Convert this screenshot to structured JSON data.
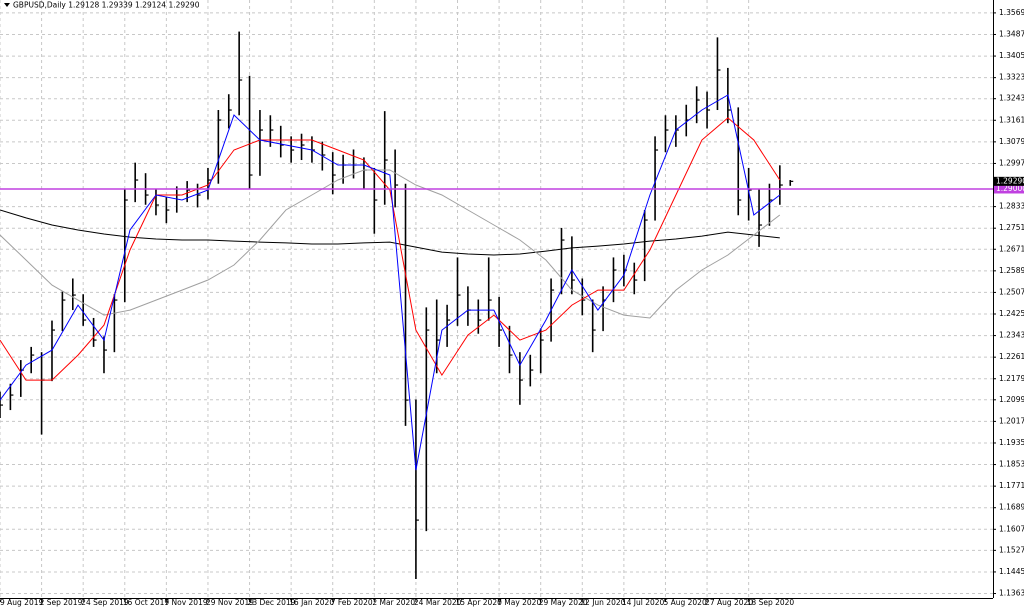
{
  "chart_data": {
    "type": "ohlc",
    "title": "GBPUSD,Daily  1.29128 1.29339 1.29124 1.29290",
    "color": "#000000",
    "grid": true,
    "x": [
      0,
      4,
      8,
      12,
      16,
      20,
      24,
      28,
      32,
      36,
      40,
      44,
      48,
      52,
      56,
      60,
      64,
      68,
      72,
      76,
      80,
      84,
      88,
      92,
      96,
      100,
      104,
      108,
      112,
      116,
      120,
      124,
      128,
      132,
      136,
      140,
      144,
      148,
      152,
      156,
      160,
      164,
      168,
      172,
      176,
      180,
      184,
      188,
      192,
      196,
      200,
      204,
      208,
      212,
      216,
      220,
      224,
      228,
      232,
      236,
      240,
      244,
      248,
      252,
      256,
      260,
      264,
      268,
      272,
      276,
      280,
      284,
      288,
      292,
      296,
      300,
      304
    ],
    "high": [
      1.213,
      1.216,
      1.225,
      1.23,
      1.228,
      1.24,
      1.251,
      1.256,
      1.25,
      1.241,
      1.234,
      1.25,
      1.29,
      1.3,
      1.296,
      1.29,
      1.287,
      1.291,
      1.293,
      1.292,
      1.298,
      1.32,
      1.326,
      1.3498,
      1.333,
      1.32,
      1.318,
      1.314,
      1.31,
      1.311,
      1.31,
      1.308,
      1.304,
      1.303,
      1.305,
      1.302,
      1.298,
      1.3196,
      1.305,
      1.292,
      1.21,
      1.245,
      1.248,
      1.246,
      1.264,
      1.253,
      1.248,
      1.264,
      1.249,
      1.238,
      1.228,
      1.227,
      1.237,
      1.256,
      1.2752,
      1.272,
      1.256,
      1.248,
      1.253,
      1.264,
      1.265,
      1.262,
      1.282,
      1.31,
      1.318,
      1.318,
      1.322,
      1.329,
      1.327,
      1.3476,
      1.336,
      1.321,
      1.298,
      1.29,
      1.292,
      1.299,
      1.2934
    ],
    "low": [
      1.203,
      1.206,
      1.211,
      1.22,
      1.1967,
      1.217,
      1.236,
      1.244,
      1.238,
      1.23,
      1.22,
      1.228,
      1.247,
      1.285,
      1.284,
      1.28,
      1.277,
      1.281,
      1.285,
      1.283,
      1.286,
      1.292,
      1.313,
      1.318,
      1.29,
      1.295,
      1.306,
      1.302,
      1.3,
      1.301,
      1.3,
      1.297,
      1.288,
      1.292,
      1.294,
      1.29,
      1.273,
      1.284,
      1.283,
      1.2,
      1.1418,
      1.16,
      1.22,
      1.23,
      1.238,
      1.238,
      1.235,
      1.24,
      1.23,
      1.22,
      1.208,
      1.215,
      1.22,
      1.232,
      1.25,
      1.25,
      1.242,
      1.228,
      1.236,
      1.247,
      1.253,
      1.25,
      1.255,
      1.278,
      1.304,
      1.306,
      1.31,
      1.315,
      1.313,
      1.32,
      1.315,
      1.28,
      1.278,
      1.268,
      1.276,
      1.284,
      1.2912
    ],
    "close": [
      1.2079,
      1.2117,
      1.2212,
      1.2269,
      1.2174,
      1.2364,
      1.2478,
      1.2497,
      1.2402,
      1.2326,
      1.2288,
      1.2478,
      1.2858,
      1.2934,
      1.2877,
      1.2839,
      1.282,
      1.2877,
      1.2896,
      1.2877,
      1.2934,
      1.3162,
      1.32,
      1.3314,
      1.2953,
      1.3124,
      1.3124,
      1.3067,
      1.3048,
      1.3067,
      1.3048,
      1.3029,
      1.2953,
      1.2991,
      1.2991,
      1.2972,
      1.2858,
      1.301,
      1.2915,
      1.2098,
      1.1642,
      1.2364,
      1.2326,
      1.2402,
      1.2497,
      1.244,
      1.2402,
      1.2478,
      1.2364,
      1.2269,
      1.2174,
      1.2212,
      1.2326,
      1.2516,
      1.2706,
      1.2554,
      1.2478,
      1.2364,
      1.2478,
      1.2592,
      1.2592,
      1.2554,
      1.2782,
      1.3048,
      1.3124,
      1.3124,
      1.3162,
      1.3238,
      1.32,
      1.3352,
      1.32,
      1.2858,
      1.2896,
      1.2763,
      1.2858,
      1.2915,
      1.2929
    ],
    "overlays": [
      {
        "color": "#000000",
        "x": [
          0,
          10,
          20,
          30,
          40,
          50,
          60,
          70,
          80,
          90,
          100,
          110,
          120,
          130,
          140,
          150,
          160,
          170,
          180,
          190,
          200,
          210,
          220,
          230,
          240,
          250,
          260,
          270,
          280,
          290,
          300
        ],
        "values": [
          1.282,
          1.279,
          1.2763,
          1.2744,
          1.2729,
          1.2717,
          1.271,
          1.2706,
          1.2706,
          1.2702,
          1.2698,
          1.2695,
          1.2691,
          1.2691,
          1.2695,
          1.2698,
          1.2679,
          1.266,
          1.2653,
          1.2649,
          1.2653,
          1.2664,
          1.2676,
          1.2683,
          1.2691,
          1.2702,
          1.271,
          1.2721,
          1.2736,
          1.2725,
          1.2714
        ]
      },
      {
        "color": "#a0a0a0",
        "x": [
          0,
          10,
          20,
          30,
          40,
          50,
          60,
          70,
          80,
          90,
          100,
          110,
          120,
          130,
          140,
          150,
          160,
          170,
          180,
          190,
          200,
          210,
          220,
          230,
          240,
          250,
          260,
          270,
          280,
          290,
          300
        ],
        "values": [
          1.2725,
          1.263,
          1.2535,
          1.2478,
          1.2421,
          1.244,
          1.2478,
          1.2516,
          1.2554,
          1.2611,
          1.2706,
          1.282,
          1.2877,
          1.2934,
          1.2972,
          1.2972,
          1.2915,
          1.2877,
          1.282,
          1.2763,
          1.2706,
          1.263,
          1.2516,
          1.2459,
          1.2421,
          1.241,
          1.2516,
          1.2592,
          1.2649,
          1.2725,
          1.2801
        ]
      },
      {
        "color": "#ff0000",
        "x": [
          0,
          10,
          20,
          30,
          40,
          50,
          60,
          70,
          80,
          90,
          100,
          110,
          120,
          130,
          140,
          150,
          160,
          170,
          180,
          190,
          200,
          210,
          220,
          230,
          240,
          250,
          260,
          270,
          280,
          290,
          300
        ],
        "values": [
          1.2326,
          1.2174,
          1.2174,
          1.2269,
          1.2383,
          1.2668,
          1.2877,
          1.2877,
          1.2915,
          1.3048,
          1.3086,
          1.3086,
          1.3086,
          1.3048,
          1.301,
          1.2896,
          1.2364,
          1.2193,
          1.2345,
          1.2421,
          1.2326,
          1.2364,
          1.2459,
          1.2516,
          1.2516,
          1.2668,
          1.2877,
          1.3086,
          1.317,
          1.3086,
          1.2934
        ]
      },
      {
        "color": "#0000ff",
        "x": [
          0,
          10,
          20,
          30,
          40,
          50,
          60,
          70,
          80,
          90,
          100,
          110,
          120,
          130,
          140,
          150,
          160,
          170,
          180,
          190,
          200,
          210,
          220,
          230,
          240,
          250,
          260,
          270,
          280,
          290,
          300
        ],
        "values": [
          1.2098,
          1.2231,
          1.2288,
          1.2459,
          1.2326,
          1.2744,
          1.2877,
          1.2858,
          1.2896,
          1.3181,
          1.3086,
          1.3067,
          1.3048,
          1.2991,
          1.2991,
          1.2953,
          1.1832,
          1.2364,
          1.244,
          1.244,
          1.2231,
          1.2402,
          1.2592,
          1.244,
          1.2573,
          1.2877,
          1.3124,
          1.32,
          1.3257,
          1.2801,
          1.2877
        ]
      }
    ],
    "hlines": [
      {
        "value": 1.29,
        "label": "1.29000",
        "color": "#c040e0"
      }
    ],
    "price_label": {
      "value": 1.2929,
      "label": "1.29290"
    },
    "xlim": [
      0,
      382
    ],
    "ylim": [
      1.1346,
      1.3618
    ],
    "xticks": [
      {
        "value": 0,
        "label": "9 Aug 2019"
      },
      {
        "value": 16,
        "label": "2 Sep 2019"
      },
      {
        "value": 32,
        "label": "24 Sep 2019"
      },
      {
        "value": 48,
        "label": "16 Oct 2019"
      },
      {
        "value": 64,
        "label": "7 Nov 2019"
      },
      {
        "value": 80,
        "label": "29 Nov 2019"
      },
      {
        "value": 96,
        "label": "23 Dec 2019"
      },
      {
        "value": 112,
        "label": "16 Jan 2020"
      },
      {
        "value": 128,
        "label": "7 Feb 2020"
      },
      {
        "value": 144,
        "label": "2 Mar 2020"
      },
      {
        "value": 160,
        "label": "24 Mar 2020"
      },
      {
        "value": 176,
        "label": "15 Apr 2020"
      },
      {
        "value": 192,
        "label": "7 May 2020"
      },
      {
        "value": 208,
        "label": "29 May 2020"
      },
      {
        "value": 224,
        "label": "22 Jun 2020"
      },
      {
        "value": 240,
        "label": "14 Jul 2020"
      },
      {
        "value": 256,
        "label": "5 Aug 2020"
      },
      {
        "value": 272,
        "label": "27 Aug 2020"
      },
      {
        "value": 288,
        "label": "18 Sep 2020"
      }
    ],
    "yticks": [
      {
        "value": 1.3569,
        "label": "1.35690"
      },
      {
        "value": 1.3487,
        "label": "1.34870"
      },
      {
        "value": 1.3405,
        "label": "1.34050"
      },
      {
        "value": 1.3323,
        "label": "1.33230"
      },
      {
        "value": 1.3243,
        "label": "1.32430"
      },
      {
        "value": 1.3161,
        "label": "1.31610"
      },
      {
        "value": 1.3079,
        "label": "1.30790"
      },
      {
        "value": 1.2997,
        "label": "1.29970"
      },
      {
        "value": 1.2833,
        "label": "1.28330"
      },
      {
        "value": 1.2751,
        "label": "1.27510"
      },
      {
        "value": 1.2671,
        "label": "1.26710"
      },
      {
        "value": 1.2589,
        "label": "1.25890"
      },
      {
        "value": 1.2507,
        "label": "1.25070"
      },
      {
        "value": 1.2425,
        "label": "1.24250"
      },
      {
        "value": 1.2343,
        "label": "1.23430"
      },
      {
        "value": 1.2261,
        "label": "1.22610"
      },
      {
        "value": 1.2179,
        "label": "1.21790"
      },
      {
        "value": 1.2099,
        "label": "1.20990"
      },
      {
        "value": 1.2017,
        "label": "1.20170"
      },
      {
        "value": 1.1935,
        "label": "1.19350"
      },
      {
        "value": 1.1853,
        "label": "1.18530"
      },
      {
        "value": 1.1771,
        "label": "1.17710"
      },
      {
        "value": 1.1689,
        "label": "1.16890"
      },
      {
        "value": 1.1607,
        "label": "1.16070"
      },
      {
        "value": 1.1527,
        "label": "1.15270"
      },
      {
        "value": 1.1445,
        "label": "1.14450"
      },
      {
        "value": 1.1363,
        "label": "1.13630"
      }
    ]
  }
}
